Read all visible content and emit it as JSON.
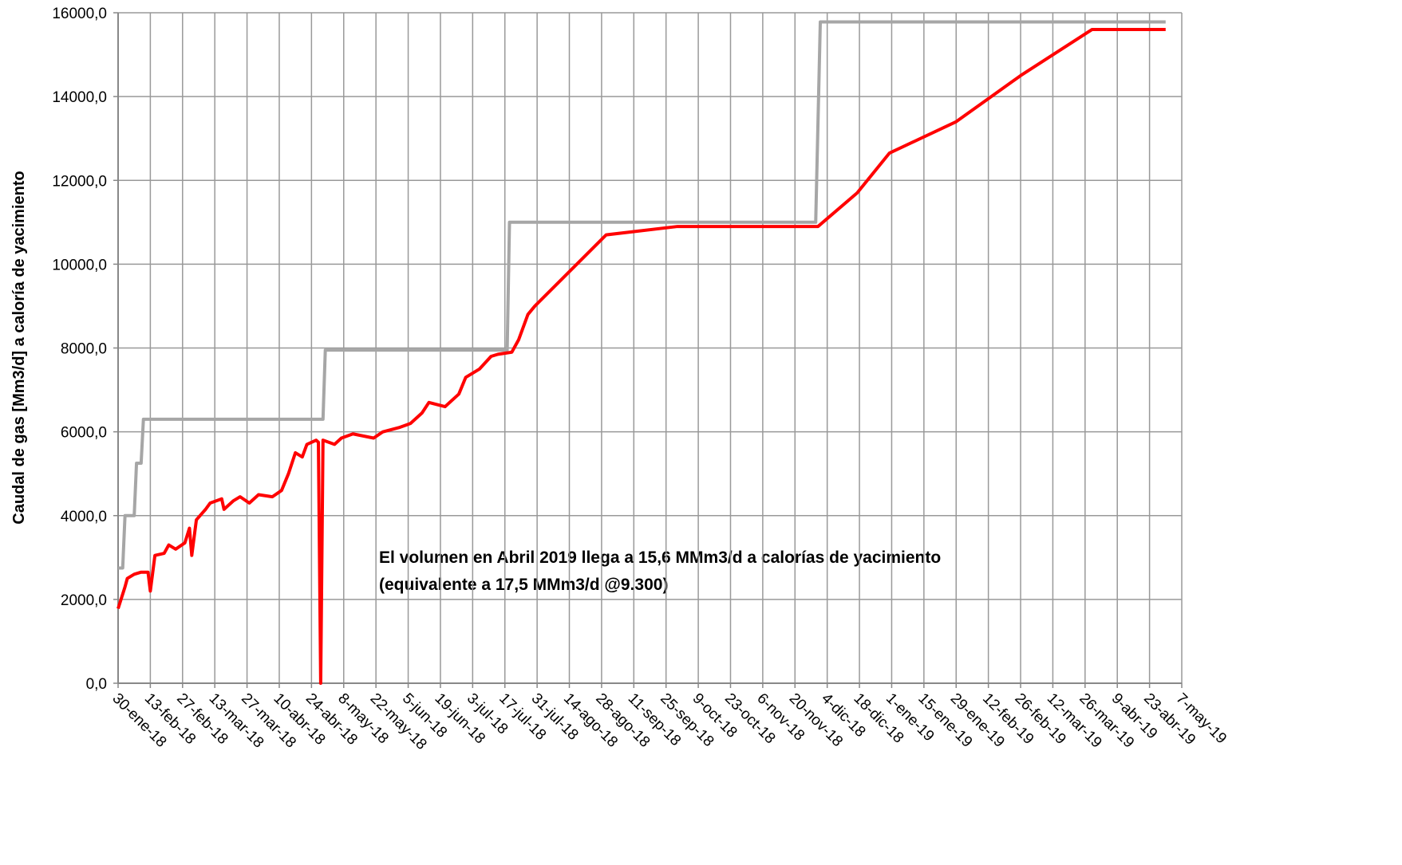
{
  "chart_data": {
    "type": "line",
    "y_label": "Caudal de gas [Mm3/d] a caloría de yacimiento",
    "annotations": [
      "El volumen en Abril 2019 llega a 15,6 MMm3/d a calorías de yacimiento",
      "(equivalente a 17,5 MMm3/d  @9.300)"
    ],
    "xlim": [
      "2018-01-30",
      "2019-05-07"
    ],
    "xticks": [
      {
        "value": "2018-01-30",
        "label": "30-ene-18"
      },
      {
        "value": "2018-02-13",
        "label": "13-feb-18"
      },
      {
        "value": "2018-02-27",
        "label": "27-feb-18"
      },
      {
        "value": "2018-03-13",
        "label": "13-mar-18"
      },
      {
        "value": "2018-03-27",
        "label": "27-mar-18"
      },
      {
        "value": "2018-04-10",
        "label": "10-abr-18"
      },
      {
        "value": "2018-04-24",
        "label": "24-abr-18"
      },
      {
        "value": "2018-05-08",
        "label": "8-may-18"
      },
      {
        "value": "2018-05-22",
        "label": "22-may-18"
      },
      {
        "value": "2018-06-05",
        "label": "5-jun-18"
      },
      {
        "value": "2018-06-19",
        "label": "19-jun-18"
      },
      {
        "value": "2018-07-03",
        "label": "3-jul-18"
      },
      {
        "value": "2018-07-17",
        "label": "17-jul-18"
      },
      {
        "value": "2018-07-31",
        "label": "31-jul-18"
      },
      {
        "value": "2018-08-14",
        "label": "14-ago-18"
      },
      {
        "value": "2018-08-28",
        "label": "28-ago-18"
      },
      {
        "value": "2018-09-11",
        "label": "11-sep-18"
      },
      {
        "value": "2018-09-25",
        "label": "25-sep-18"
      },
      {
        "value": "2018-10-09",
        "label": "9-oct-18"
      },
      {
        "value": "2018-10-23",
        "label": "23-oct-18"
      },
      {
        "value": "2018-11-06",
        "label": "6-nov-18"
      },
      {
        "value": "2018-11-20",
        "label": "20-nov-18"
      },
      {
        "value": "2018-12-04",
        "label": "4-dic-18"
      },
      {
        "value": "2018-12-18",
        "label": "18-dic-18"
      },
      {
        "value": "2019-01-01",
        "label": "1-ene-19"
      },
      {
        "value": "2019-01-15",
        "label": "15-ene-19"
      },
      {
        "value": "2019-01-29",
        "label": "29-ene-19"
      },
      {
        "value": "2019-02-12",
        "label": "12-feb-19"
      },
      {
        "value": "2019-02-26",
        "label": "26-feb-19"
      },
      {
        "value": "2019-03-12",
        "label": "12-mar-19"
      },
      {
        "value": "2019-03-26",
        "label": "26-mar-19"
      },
      {
        "value": "2019-04-09",
        "label": "9-abr-19"
      },
      {
        "value": "2019-04-23",
        "label": "23-abr-19"
      },
      {
        "value": "2019-05-07",
        "label": "7-may-19"
      }
    ],
    "ylim": [
      0,
      16000
    ],
    "yticks": [
      {
        "value": 0,
        "label": "0,0"
      },
      {
        "value": 2000,
        "label": "2000,0"
      },
      {
        "value": 4000,
        "label": "4000,0"
      },
      {
        "value": 6000,
        "label": "6000,0"
      },
      {
        "value": 8000,
        "label": "8000,0"
      },
      {
        "value": 10000,
        "label": "10000,0"
      },
      {
        "value": 12000,
        "label": "12000,0"
      },
      {
        "value": 14000,
        "label": "14000,0"
      },
      {
        "value": 16000,
        "label": "16000,0"
      }
    ],
    "grid": true,
    "series": [
      {
        "color": "#a6a6a6",
        "x": [
          "2018-01-30",
          "2018-02-01",
          "2018-02-02",
          "2018-02-06",
          "2018-02-07",
          "2018-02-09",
          "2018-02-10",
          "2018-04-29",
          "2018-04-30",
          "2018-07-18",
          "2018-07-19",
          "2018-11-29",
          "2018-12-01",
          "2019-04-30"
        ],
        "values": [
          2750,
          2750,
          4000,
          4000,
          5250,
          5250,
          6300,
          6300,
          7950,
          7950,
          11000,
          11000,
          15780,
          15780
        ]
      },
      {
        "color": "#ff0000",
        "x": [
          "2018-01-30",
          "2018-02-02",
          "2018-02-03",
          "2018-02-06",
          "2018-02-09",
          "2018-02-12",
          "2018-02-13",
          "2018-02-15",
          "2018-02-19",
          "2018-02-21",
          "2018-02-24",
          "2018-02-28",
          "2018-03-02",
          "2018-03-03",
          "2018-03-05",
          "2018-03-09",
          "2018-03-11",
          "2018-03-16",
          "2018-03-17",
          "2018-03-21",
          "2018-03-24",
          "2018-03-28",
          "2018-04-01",
          "2018-04-07",
          "2018-04-11",
          "2018-04-14",
          "2018-04-17",
          "2018-04-20",
          "2018-04-22",
          "2018-04-26",
          "2018-04-27",
          "2018-04-28",
          "2018-04-29",
          "2018-05-04",
          "2018-05-07",
          "2018-05-12",
          "2018-05-21",
          "2018-05-25",
          "2018-06-01",
          "2018-06-06",
          "2018-06-11",
          "2018-06-14",
          "2018-06-21",
          "2018-06-27",
          "2018-06-30",
          "2018-07-06",
          "2018-07-11",
          "2018-07-14",
          "2018-07-20",
          "2018-07-23",
          "2018-07-27",
          "2018-07-30",
          "2018-08-30",
          "2018-09-30",
          "2018-11-30",
          "2018-12-17",
          "2018-12-31",
          "2019-01-29",
          "2019-02-26",
          "2019-03-29",
          "2019-04-30"
        ],
        "values": [
          1780,
          2300,
          2500,
          2600,
          2650,
          2650,
          2200,
          3050,
          3100,
          3300,
          3200,
          3350,
          3700,
          3050,
          3900,
          4150,
          4300,
          4400,
          4150,
          4350,
          4450,
          4300,
          4500,
          4450,
          4600,
          5000,
          5500,
          5400,
          5700,
          5800,
          5750,
          0,
          5800,
          5700,
          5850,
          5950,
          5850,
          6000,
          6100,
          6200,
          6450,
          6700,
          6600,
          6900,
          7300,
          7500,
          7800,
          7850,
          7900,
          8200,
          8800,
          9000,
          10700,
          10900,
          10900,
          11700,
          12650,
          13400,
          14500,
          15600,
          15600
        ]
      }
    ]
  }
}
